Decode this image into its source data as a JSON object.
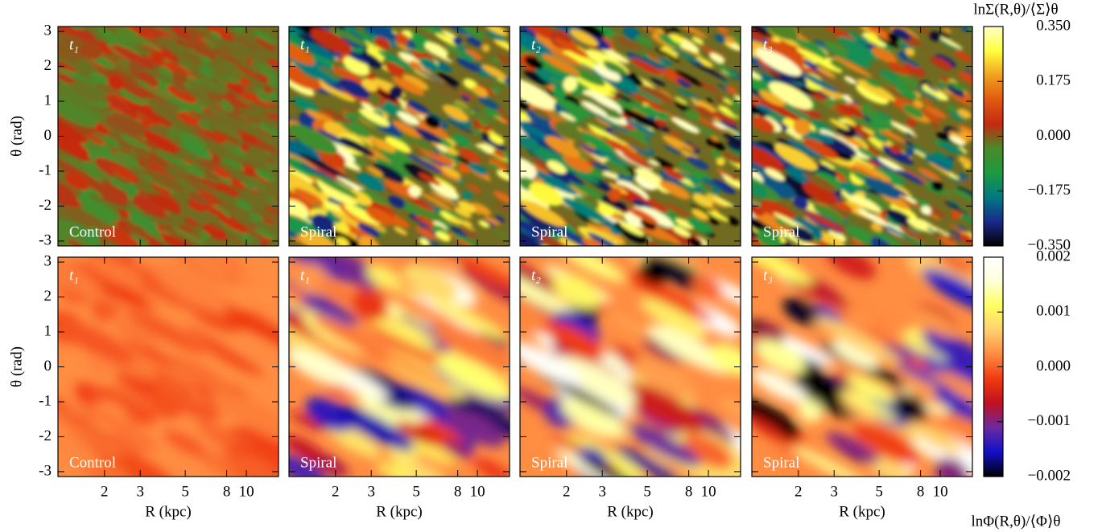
{
  "chart_data": {
    "type": "heatmap",
    "xlabel": "R (kpc)",
    "ylabel": "θ (rad)",
    "xscale": "log",
    "xlim": [
      1.18,
      14.4
    ],
    "xticks": [
      2,
      3,
      5,
      8,
      10
    ],
    "ylim": [
      -3.14,
      3.14
    ],
    "yticks": [
      -3,
      -2,
      -1,
      0,
      1,
      2,
      3
    ],
    "rows": [
      {
        "colorbar": {
          "title": "lnΣ(R,θ)/⟨Σ⟩θ",
          "lim": [
            -0.35,
            0.35
          ],
          "ticks": [
            {
              "value": -0.35,
              "label": "−0.350"
            },
            {
              "value": -0.175,
              "label": "−0.175"
            },
            {
              "value": 0,
              "label": "0.000"
            },
            {
              "value": 0.175,
              "label": "0.175"
            },
            {
              "value": 0.35,
              "label": "0.350"
            }
          ],
          "colors": [
            "#000000",
            "#1a2a8a",
            "#007a80",
            "#1e9a40",
            "#4a8a2a",
            "#c42a10",
            "#e05a10",
            "#f0a020",
            "#ffff40",
            "#ffffc8"
          ]
        },
        "panels": [
          {
            "time": "t₁",
            "label": "Control"
          },
          {
            "time": "t₁",
            "label": "Spiral"
          },
          {
            "time": "t₂",
            "label": "Spiral"
          },
          {
            "time": "t₃",
            "label": "Spiral"
          }
        ]
      },
      {
        "colorbar": {
          "title": "lnΦ(R,θ)/⟨Φ⟩θ",
          "lim": [
            -0.002,
            0.002
          ],
          "ticks": [
            {
              "value": -0.002,
              "label": "−0.002"
            },
            {
              "value": -0.001,
              "label": "−0.001"
            },
            {
              "value": 0,
              "label": "0.000"
            },
            {
              "value": 0.001,
              "label": "0.001"
            },
            {
              "value": 0.002,
              "label": "0.002"
            }
          ],
          "colors": [
            "#000000",
            "#1010c8",
            "#6a2aa0",
            "#c01020",
            "#f03a10",
            "#ff8a40",
            "#ffd070",
            "#ffff60",
            "#ffffd8",
            "#ffffff"
          ]
        },
        "panels": [
          {
            "time": "t₁",
            "label": "Control"
          },
          {
            "time": "t₁",
            "label": "Spiral"
          },
          {
            "time": "t₂",
            "label": "Spiral"
          },
          {
            "time": "t₃",
            "label": "Spiral"
          }
        ]
      }
    ]
  }
}
